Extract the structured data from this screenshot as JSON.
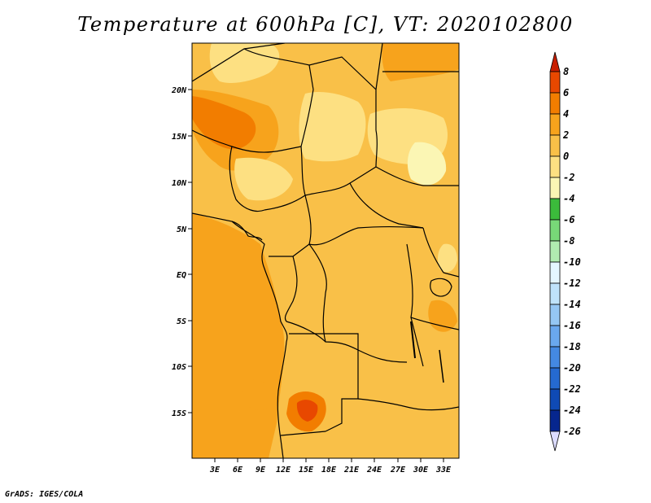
{
  "title": "Temperature at 600hPa [C], VT: 2020102800",
  "credit": "GrADS: IGES/COLA",
  "map": {
    "lat_labels": [
      "20N",
      "15N",
      "10N",
      "5N",
      "EQ",
      "5S",
      "10S",
      "15S"
    ],
    "lon_labels": [
      "3E",
      "6E",
      "9E",
      "12E",
      "15E",
      "18E",
      "21E",
      "24E",
      "27E",
      "30E",
      "33E"
    ]
  },
  "colorbar": {
    "levels": [
      "8",
      "6",
      "4",
      "2",
      "0",
      "-2",
      "-4",
      "-6",
      "-8",
      "-10",
      "-12",
      "-14",
      "-16",
      "-18",
      "-20",
      "-22",
      "-24",
      "-26"
    ],
    "colors": [
      "#c81e00",
      "#e84800",
      "#f27d00",
      "#f7a31c",
      "#f9c048",
      "#fde082",
      "#fbf6b4",
      "#3bbb3b",
      "#78d878",
      "#b0ebb0",
      "#e4f6ff",
      "#bfe3fb",
      "#95c7f4",
      "#6aa8ee",
      "#4489e2",
      "#256ad0",
      "#0f4ab4",
      "#06268e",
      "#02105a"
    ]
  }
}
